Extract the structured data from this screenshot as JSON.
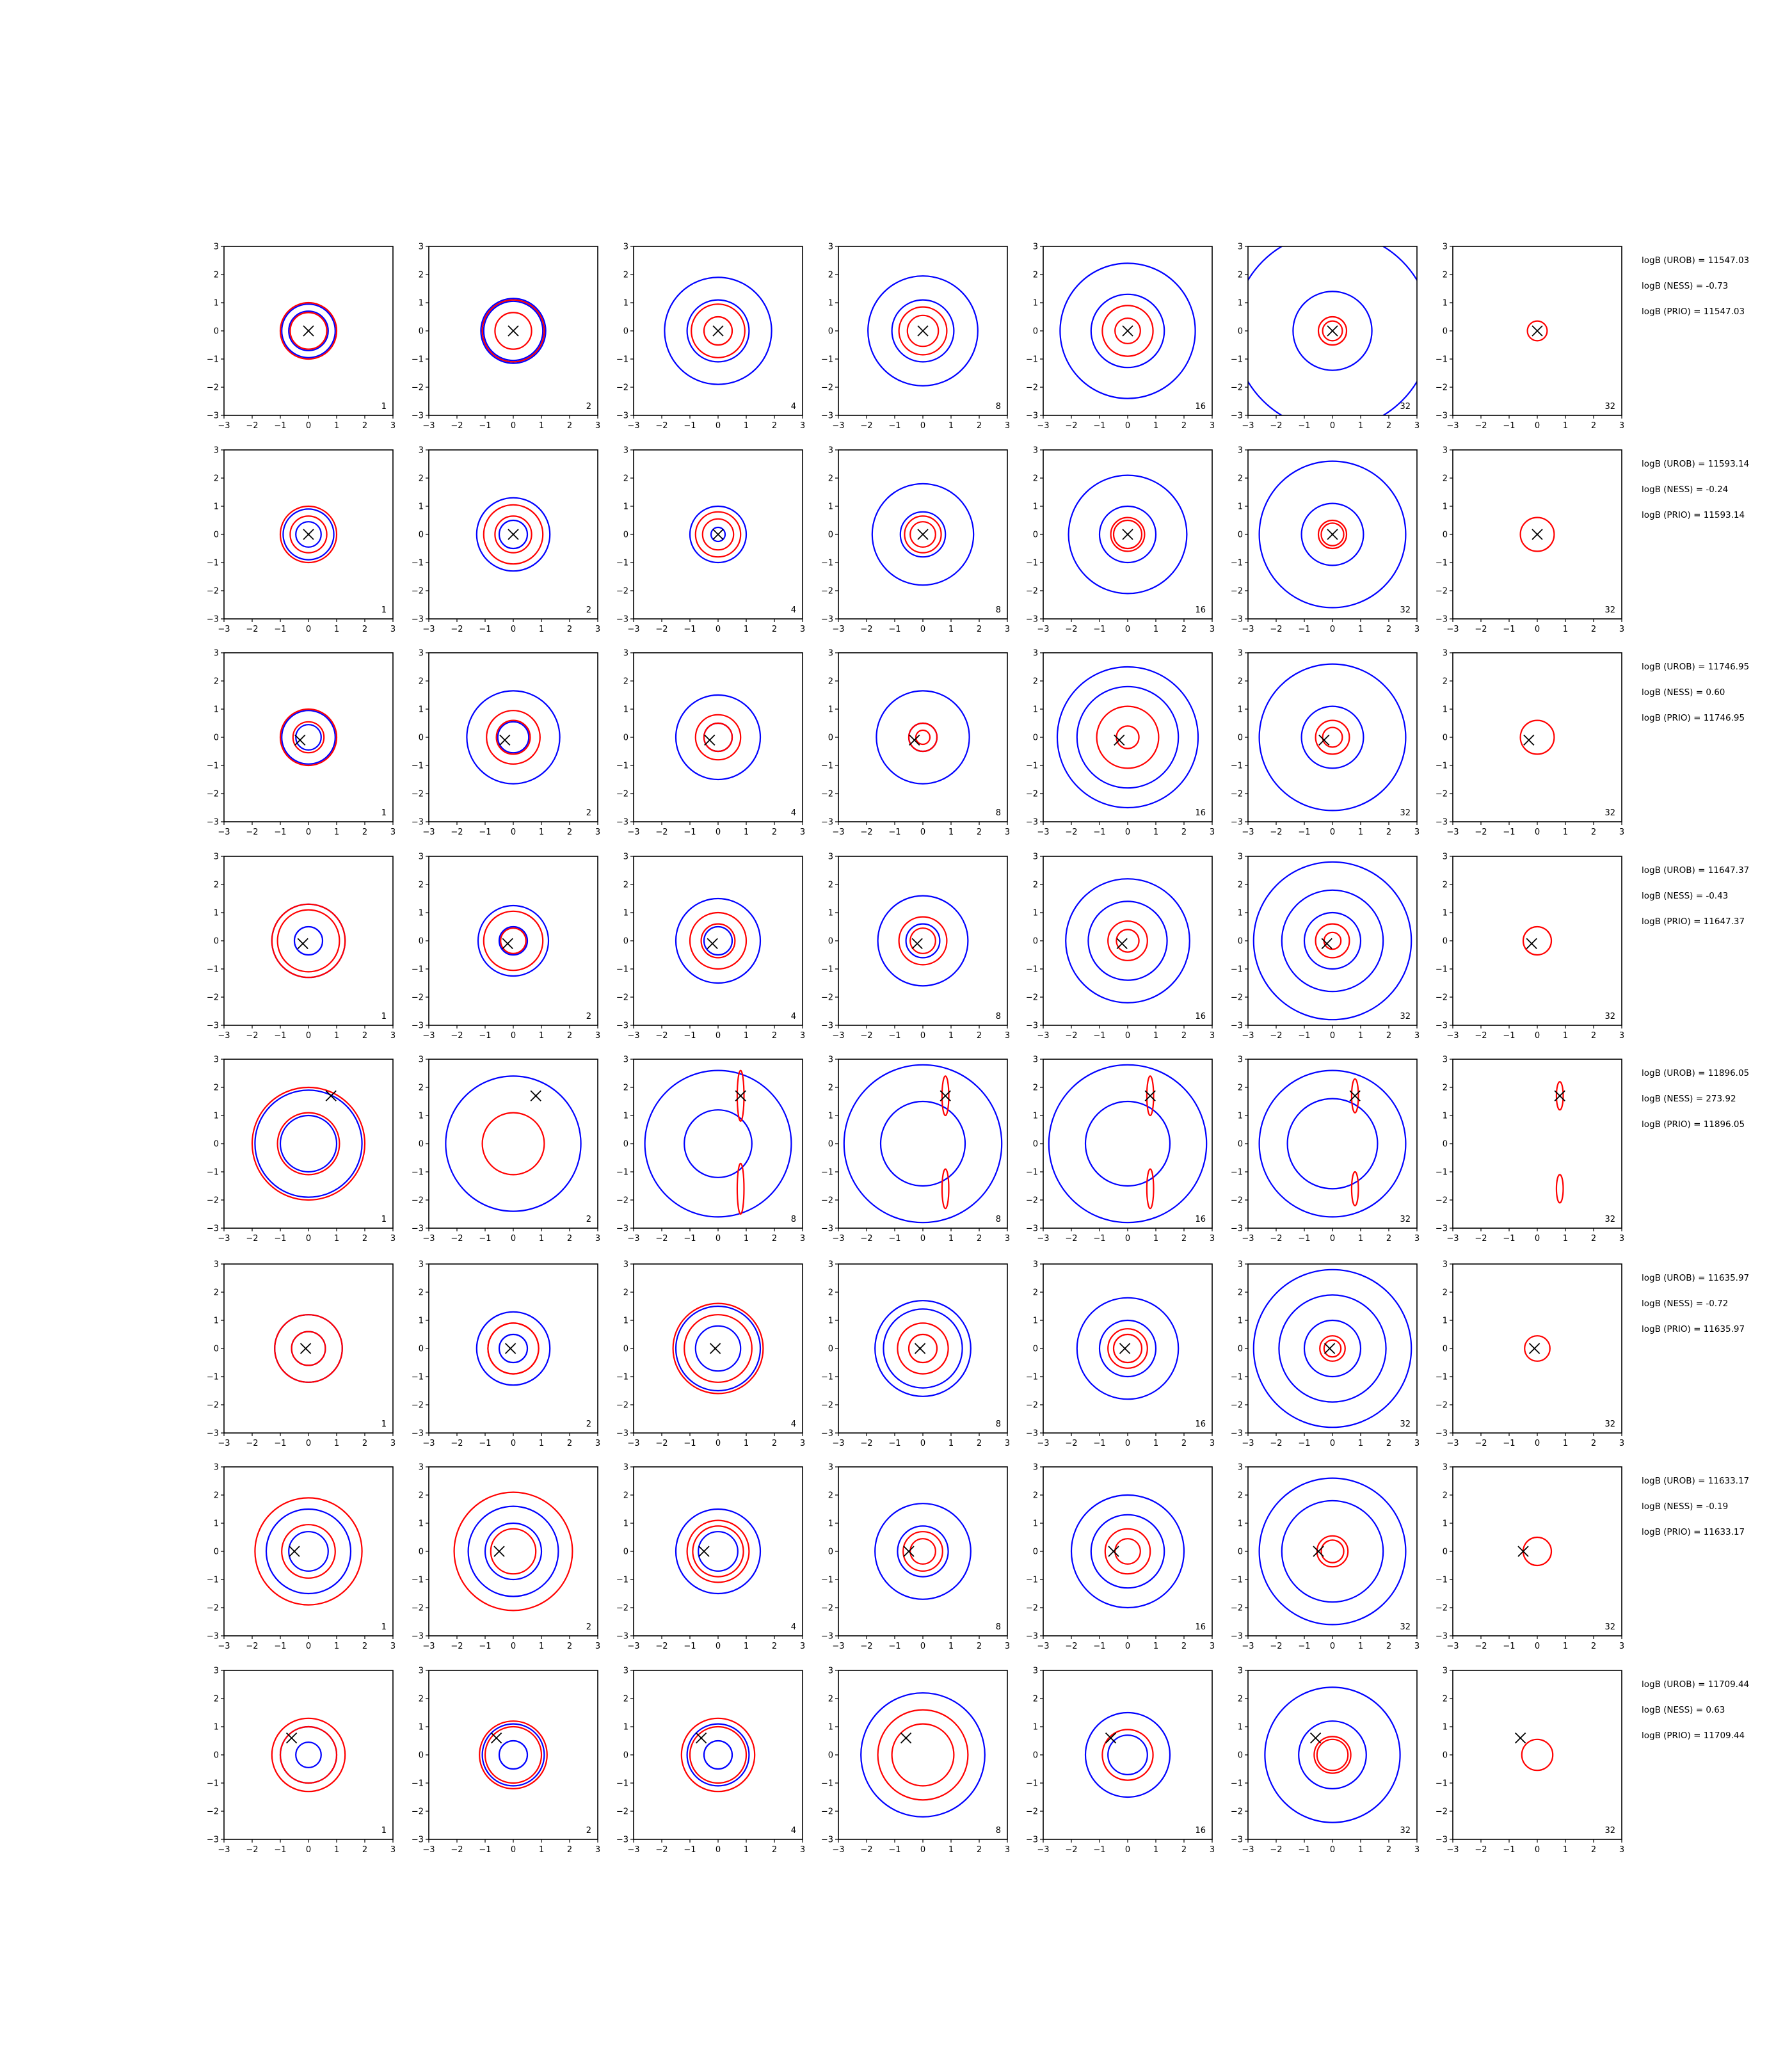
{
  "chart_data": {
    "type": "contour-grid",
    "xlim": [
      -3,
      3
    ],
    "ylim": [
      -3,
      3
    ],
    "ticks": [
      "−3",
      "−2",
      "−1",
      "0",
      "1",
      "2",
      "3"
    ],
    "tick_values": [
      -3,
      -2,
      -1,
      0,
      1,
      2,
      3
    ],
    "colors": {
      "blue_series": "#0000ff",
      "red_series": "#ff0000",
      "marker": "#000000"
    },
    "rows": [
      {
        "marker": [
          0.0,
          0.0
        ],
        "badges": [
          "1",
          "2",
          "4",
          "8",
          "16",
          "32",
          "32"
        ],
        "stats": [
          "logB (UROB) = 11547.03",
          "logB (NESS) = -0.73",
          "logB (PRIO) = 11547.03"
        ],
        "blue": [
          [
            0.95,
            0.7
          ],
          [
            1.05,
            1.15
          ],
          [
            1.1,
            1.9
          ],
          [
            1.1,
            1.95
          ],
          [
            1.3,
            2.4
          ],
          [
            1.4,
            3.5
          ],
          []
        ],
        "red": [
          [
            0.65,
            1.0
          ],
          [
            0.65,
            1.1
          ],
          [
            0.5,
            0.95
          ],
          [
            0.55,
            0.85
          ],
          [
            0.45,
            0.9
          ],
          [
            0.35,
            0.5
          ],
          [
            0.35
          ]
        ]
      },
      {
        "marker": [
          0.0,
          0.0
        ],
        "badges": [
          "1",
          "2",
          "4",
          "8",
          "16",
          "32",
          "32"
        ],
        "stats": [
          "logB (UROB) = 11593.14",
          "logB (NESS) = -0.24",
          "logB (PRIO) = 11593.14"
        ],
        "blue": [
          [
            0.9,
            0.45
          ],
          [
            1.3,
            0.5
          ],
          [
            1.0,
            0.25
          ],
          [
            1.8,
            0.8
          ],
          [
            2.1,
            1.0
          ],
          [
            2.6,
            1.1
          ],
          []
        ],
        "red": [
          [
            0.65,
            1.0
          ],
          [
            0.65,
            1.05
          ],
          [
            0.55,
            0.8
          ],
          [
            0.45,
            0.65
          ],
          [
            0.6,
            0.5
          ],
          [
            0.5,
            0.4
          ],
          [
            0.6
          ]
        ]
      },
      {
        "marker": [
          -0.3,
          -0.1
        ],
        "badges": [
          "1",
          "2",
          "4",
          "8",
          "16",
          "32",
          "32"
        ],
        "stats": [
          "logB (UROB) = 11746.95",
          "logB (NESS) = 0.60",
          "logB (PRIO) = 11746.95"
        ],
        "blue": [
          [
            0.95,
            0.45
          ],
          [
            1.65,
            0.55
          ],
          [
            1.5,
            0.5
          ],
          [
            1.65,
            0.5
          ],
          [
            1.8,
            2.5
          ],
          [
            2.6,
            1.1
          ],
          []
        ],
        "red": [
          [
            1.0,
            0.55
          ],
          [
            0.95,
            0.6
          ],
          [
            0.8,
            0.5
          ],
          [
            0.5,
            0.25
          ],
          [
            1.1,
            0.4
          ],
          [
            0.6,
            0.35
          ],
          [
            0.6
          ]
        ]
      },
      {
        "marker": [
          -0.2,
          -0.1
        ],
        "badges": [
          "1",
          "2",
          "4",
          "8",
          "16",
          "32",
          "32"
        ],
        "stats": [
          "logB (UROB) = 11647.37",
          "logB (NESS) = -0.43",
          "logB (PRIO) = 11647.37"
        ],
        "blue": [
          [
            0.5,
            1.3
          ],
          [
            0.5,
            1.25
          ],
          [
            0.5,
            1.5
          ],
          [
            0.6,
            1.6
          ],
          [
            1.4,
            2.2
          ],
          [
            1.0,
            1.8,
            2.8
          ],
          []
        ],
        "red": [
          [
            1.1,
            1.3
          ],
          [
            1.05,
            0.45
          ],
          [
            1.0,
            0.6
          ],
          [
            0.85,
            0.45
          ],
          [
            0.7,
            0.4
          ],
          [
            0.6,
            0.3
          ],
          [
            0.5
          ]
        ]
      },
      {
        "marker": [
          0.8,
          1.7
        ],
        "badges": [
          "1",
          "2",
          "8",
          "8",
          "16",
          "32",
          "32"
        ],
        "stats": [
          "logB (UROB) = 11896.05",
          "logB (NESS) = 273.92",
          "logB (PRIO) = 11896.05"
        ],
        "blue": [
          [
            1.0,
            1.9
          ],
          [
            2.4
          ],
          [
            1.2,
            2.6
          ],
          [
            1.5,
            2.8
          ],
          [
            1.5,
            2.8
          ],
          [
            1.6,
            2.6
          ],
          []
        ],
        "red": [
          [
            1.1,
            2.0
          ],
          [
            1.1
          ],
          [
            0.9
          ],
          [
            0.7
          ],
          [
            0.7
          ],
          [
            0.6
          ],
          [
            0.5
          ]
        ]
      },
      {
        "marker": [
          -0.1,
          0.0
        ],
        "badges": [
          "1",
          "2",
          "4",
          "8",
          "16",
          "32",
          "32"
        ],
        "stats": [
          "logB (UROB) = 11635.97",
          "logB (NESS) = -0.72",
          "logB (PRIO) = 11635.97"
        ],
        "blue": [
          [
            0.6,
            1.2
          ],
          [
            0.5,
            1.3
          ],
          [
            0.8,
            1.5
          ],
          [
            1.4,
            1.7
          ],
          [
            1.0,
            1.8
          ],
          [
            1.0,
            1.9,
            2.8
          ],
          []
        ],
        "red": [
          [
            0.6,
            1.2
          ],
          [
            0.9,
            0.9
          ],
          [
            1.2,
            1.6
          ],
          [
            0.5,
            0.9
          ],
          [
            0.7,
            0.5
          ],
          [
            0.45,
            0.3
          ],
          [
            0.45
          ]
        ]
      },
      {
        "marker": [
          -0.5,
          0.0
        ],
        "badges": [
          "1",
          "2",
          "4",
          "8",
          "16",
          "32",
          "32"
        ],
        "stats": [
          "logB (UROB) = 11633.17",
          "logB (NESS) = -0.19",
          "logB (PRIO) = 11633.17"
        ],
        "blue": [
          [
            0.7,
            1.5
          ],
          [
            1.0,
            1.6
          ],
          [
            0.7,
            1.5
          ],
          [
            0.9,
            1.7
          ],
          [
            1.3,
            2.0
          ],
          [
            1.8,
            2.6
          ],
          []
        ],
        "red": [
          [
            0.95,
            1.9
          ],
          [
            0.8,
            2.1
          ],
          [
            0.9,
            1.1
          ],
          [
            0.45,
            0.7
          ],
          [
            0.45,
            0.8
          ],
          [
            0.55,
            0.4
          ],
          [
            0.5
          ]
        ]
      },
      {
        "marker": [
          -0.6,
          0.6
        ],
        "badges": [
          "1",
          "2",
          "4",
          "8",
          "16",
          "32",
          "32"
        ],
        "stats": [
          "logB (UROB) = 11709.44",
          "logB (NESS) = 0.63",
          "logB (PRIO) = 11709.44"
        ],
        "blue": [
          [
            1.0,
            0.45
          ],
          [
            0.5,
            1.1
          ],
          [
            0.5,
            1.1
          ],
          [
            2.2
          ],
          [
            0.7,
            1.5
          ],
          [
            1.2,
            2.4
          ],
          []
        ],
        "red": [
          [
            1.0,
            1.3
          ],
          [
            1.0,
            1.2
          ],
          [
            1.0,
            1.3
          ],
          [
            1.1,
            1.6
          ],
          [
            0.9
          ],
          [
            0.65,
            0.55
          ],
          [
            0.55
          ]
        ]
      }
    ]
  }
}
